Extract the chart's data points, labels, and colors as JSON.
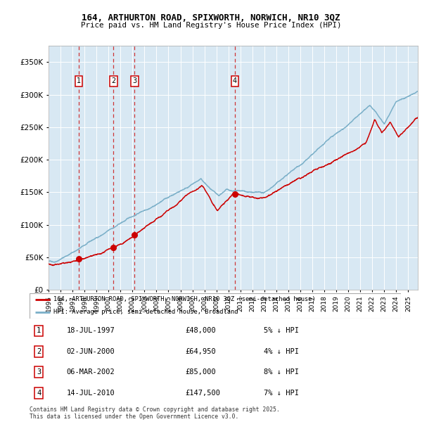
{
  "title_line1": "164, ARTHURTON ROAD, SPIXWORTH, NORWICH, NR10 3QZ",
  "title_line2": "Price paid vs. HM Land Registry's House Price Index (HPI)",
  "ylabel_ticks": [
    "£0",
    "£50K",
    "£100K",
    "£150K",
    "£200K",
    "£250K",
    "£300K",
    "£350K"
  ],
  "ylabel_values": [
    0,
    50000,
    100000,
    150000,
    200000,
    250000,
    300000,
    350000
  ],
  "ylim": [
    0,
    375000
  ],
  "xlim_start": 1995.0,
  "xlim_end": 2025.8,
  "bg_color": "#d8e8f3",
  "red_line_color": "#cc0000",
  "blue_line_color": "#7aafc8",
  "grid_color": "#ffffff",
  "dashed_line_color": "#cc2222",
  "sale_dates": [
    1997.54,
    2000.42,
    2002.18,
    2010.54
  ],
  "sale_prices": [
    48000,
    64950,
    85000,
    147500
  ],
  "sale_labels": [
    "1",
    "2",
    "3",
    "4"
  ],
  "legend_red_label": "164, ARTHURTON ROAD, SPIXWORTH, NORWICH, NR10 3QZ (semi-detached house)",
  "legend_blue_label": "HPI: Average price, semi-detached house, Broadland",
  "table_rows": [
    [
      "1",
      "18-JUL-1997",
      "£48,000",
      "5% ↓ HPI"
    ],
    [
      "2",
      "02-JUN-2000",
      "£64,950",
      "4% ↓ HPI"
    ],
    [
      "3",
      "06-MAR-2002",
      "£85,000",
      "8% ↓ HPI"
    ],
    [
      "4",
      "14-JUL-2010",
      "£147,500",
      "7% ↓ HPI"
    ]
  ],
  "footnote": "Contains HM Land Registry data © Crown copyright and database right 2025.\nThis data is licensed under the Open Government Licence v3.0.",
  "x_tick_years": [
    1995,
    1996,
    1997,
    1998,
    1999,
    2000,
    2001,
    2002,
    2003,
    2004,
    2005,
    2006,
    2007,
    2008,
    2009,
    2010,
    2011,
    2012,
    2013,
    2014,
    2015,
    2016,
    2017,
    2018,
    2019,
    2020,
    2021,
    2022,
    2023,
    2024,
    2025
  ]
}
